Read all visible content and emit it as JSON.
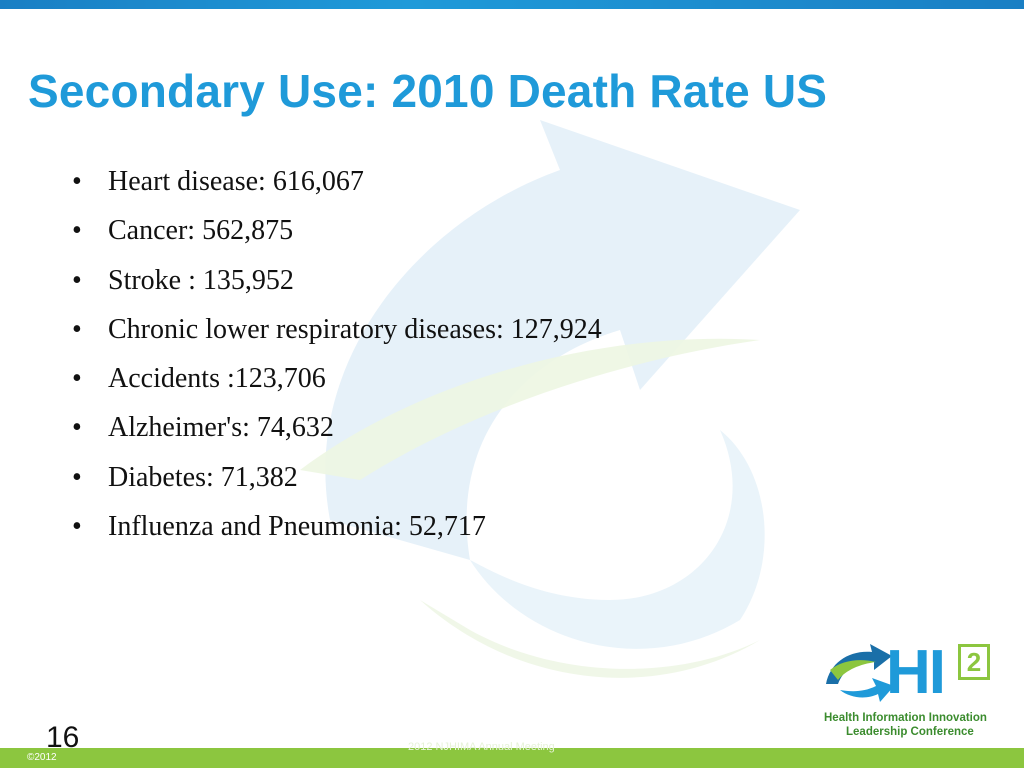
{
  "slide": {
    "title": "Secondary Use: 2010 Death Rate US",
    "bullets": [
      "Heart disease: 616,067",
      "Cancer: 562,875",
      "Stroke : 135,952",
      "Chronic lower respiratory diseases: 127,924",
      "Accidents :123,706",
      "Alzheimer's: 74,632",
      "Diabetes: 71,382",
      "Influenza and Pneumonia: 52,717"
    ],
    "bullet_marker": "•",
    "slide_number": "16"
  },
  "footer": {
    "copyright": "©2012",
    "text": "2012 NJHIMA Annual Meeting"
  },
  "logo": {
    "main": "HI",
    "superscript": "2",
    "line1": "Health Information Innovation",
    "line2": "Leadership Conference"
  },
  "colors": {
    "title": "#1f9ad9",
    "accent_green": "#8cc63f",
    "top_bar": "#1a7fc4"
  }
}
